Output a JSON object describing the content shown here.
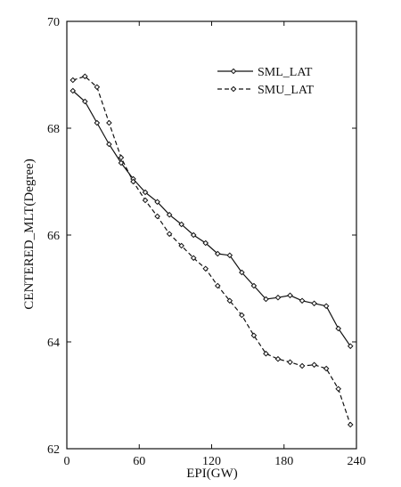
{
  "chart_data": {
    "type": "line",
    "title": "",
    "xlabel": "EPI(GW)",
    "ylabel": "CENTERED_MLT(Degree)",
    "xlim": [
      0,
      240
    ],
    "ylim": [
      62,
      70
    ],
    "x_ticks": [
      0,
      60,
      120,
      180,
      240
    ],
    "y_ticks": [
      62,
      64,
      66,
      68,
      70
    ],
    "x_tick_labels": [
      "0",
      "60",
      "120",
      "180",
      "240"
    ],
    "y_tick_labels": [
      "62",
      "64",
      "66",
      "68",
      "70"
    ],
    "grid": false,
    "legend_position": "top-right",
    "series": [
      {
        "name": "SML_LAT",
        "line_style": "solid",
        "marker": "diamond",
        "color": "#111111",
        "points": [
          [
            5,
            68.7
          ],
          [
            15,
            68.5
          ],
          [
            25,
            68.1
          ],
          [
            35,
            67.7
          ],
          [
            45,
            67.35
          ],
          [
            55,
            67.05
          ],
          [
            65,
            66.8
          ],
          [
            75,
            66.62
          ],
          [
            85,
            66.38
          ],
          [
            95,
            66.2
          ],
          [
            105,
            66.0
          ],
          [
            115,
            65.85
          ],
          [
            125,
            65.65
          ],
          [
            135,
            65.62
          ],
          [
            145,
            65.3
          ],
          [
            155,
            65.05
          ],
          [
            165,
            64.8
          ],
          [
            175,
            64.83
          ],
          [
            185,
            64.87
          ],
          [
            195,
            64.77
          ],
          [
            205,
            64.72
          ],
          [
            215,
            64.67
          ],
          [
            225,
            64.25
          ],
          [
            235,
            63.92
          ]
        ]
      },
      {
        "name": "SMU_LAT",
        "line_style": "dashed",
        "marker": "diamond",
        "color": "#111111",
        "points": [
          [
            5,
            68.9
          ],
          [
            15,
            68.97
          ],
          [
            25,
            68.77
          ],
          [
            35,
            68.1
          ],
          [
            45,
            67.45
          ],
          [
            55,
            67.0
          ],
          [
            65,
            66.65
          ],
          [
            75,
            66.35
          ],
          [
            85,
            66.02
          ],
          [
            95,
            65.8
          ],
          [
            105,
            65.57
          ],
          [
            115,
            65.37
          ],
          [
            125,
            65.05
          ],
          [
            135,
            64.77
          ],
          [
            145,
            64.5
          ],
          [
            155,
            64.12
          ],
          [
            165,
            63.78
          ],
          [
            175,
            63.68
          ],
          [
            185,
            63.62
          ],
          [
            195,
            63.55
          ],
          [
            205,
            63.57
          ],
          [
            215,
            63.5
          ],
          [
            225,
            63.12
          ],
          [
            235,
            62.45
          ]
        ]
      }
    ]
  }
}
